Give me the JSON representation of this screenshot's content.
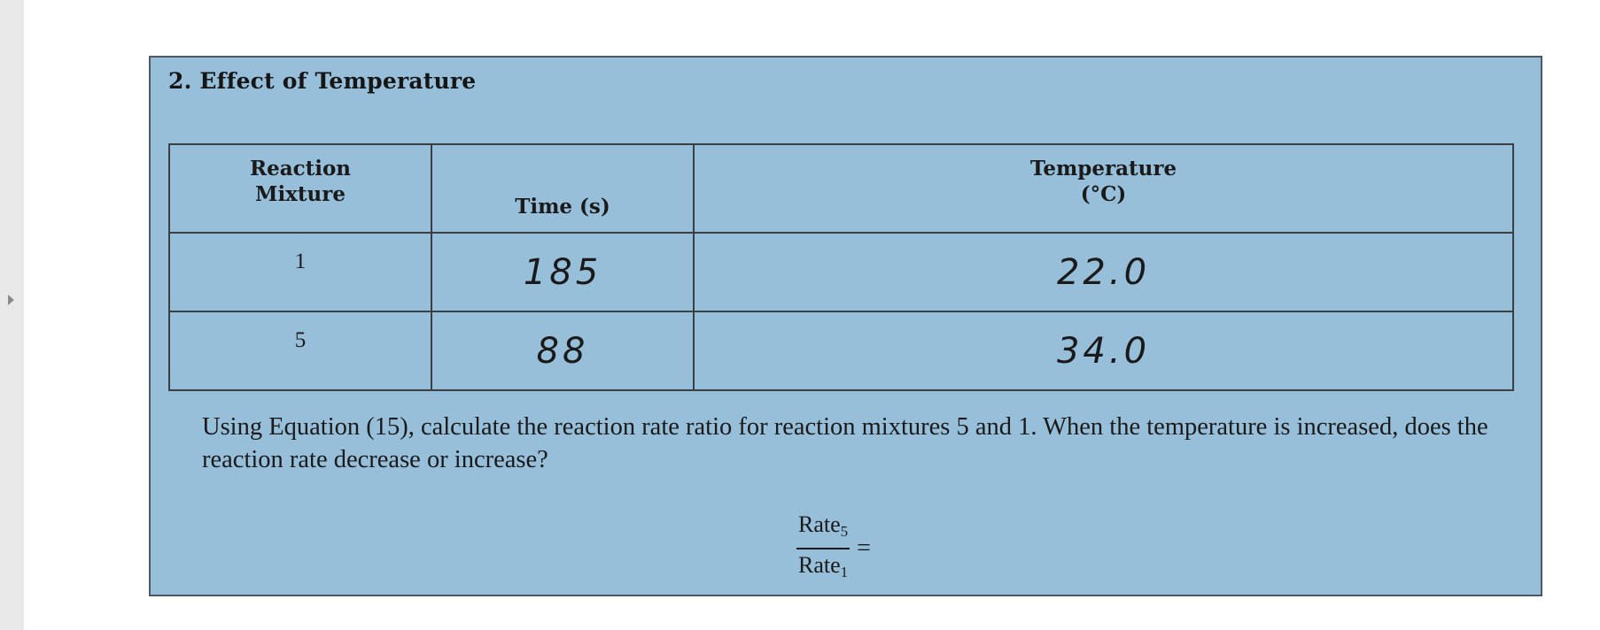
{
  "section": {
    "title": "2. Effect of Temperature"
  },
  "table": {
    "headers": {
      "mixture_line1": "Reaction",
      "mixture_line2": "Mixture",
      "time": "Time (s)",
      "temperature_line1": "Temperature",
      "temperature_line2": "(°C)"
    },
    "rows": [
      {
        "mixture": "1",
        "time": "185",
        "temperature": "22.0"
      },
      {
        "mixture": "5",
        "time": "88",
        "temperature": "34.0"
      }
    ]
  },
  "question": {
    "text": "Using Equation (15), calculate the reaction rate ratio for reaction mixtures 5 and 1. When the temperature is increased, does the reaction rate decrease or increase?"
  },
  "formula": {
    "numerator": "Rate",
    "numerator_sub": "5",
    "denominator": "Rate",
    "denominator_sub": "1",
    "equals": "="
  },
  "colors": {
    "panel_background": "#97bfda",
    "panel_border": "#4e5a63"
  },
  "icons": {
    "left_rail": "expand-arrow-icon"
  }
}
